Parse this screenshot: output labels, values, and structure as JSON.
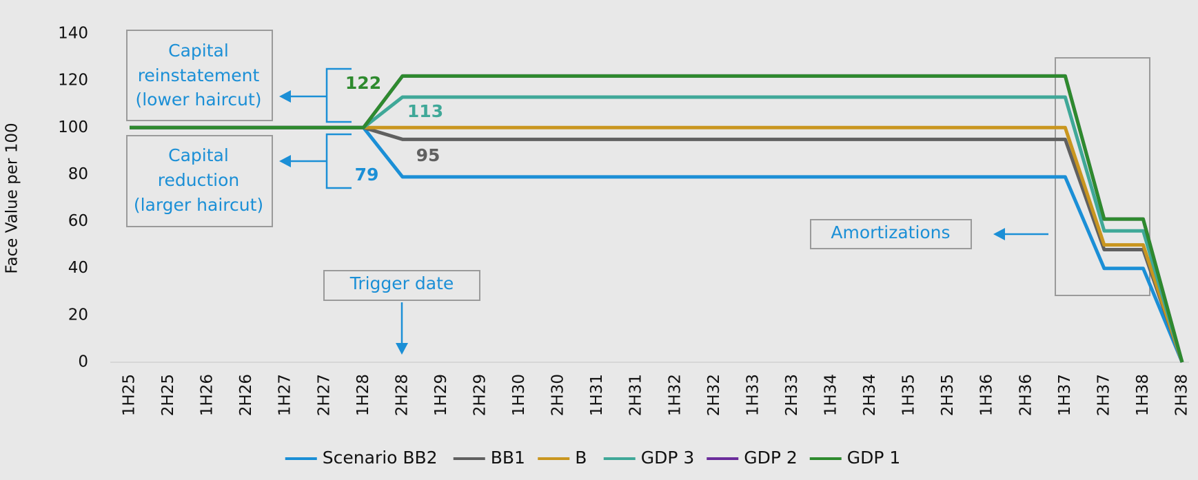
{
  "chart_data": {
    "type": "line",
    "y_label": "Face Value per 100",
    "categories": [
      "1H25",
      "2H25",
      "1H26",
      "2H26",
      "1H27",
      "2H27",
      "1H28",
      "2H28",
      "1H29",
      "2H29",
      "1H30",
      "2H30",
      "1H31",
      "2H31",
      "1H32",
      "2H32",
      "1H33",
      "2H33",
      "1H34",
      "2H34",
      "1H35",
      "2H35",
      "1H36",
      "2H36",
      "1H37",
      "2H37",
      "1H38",
      "2H38"
    ],
    "series": [
      {
        "name": "Scenario BB2",
        "color": "#1b8fd6",
        "values": [
          100,
          100,
          100,
          100,
          100,
          100,
          100,
          79,
          79,
          79,
          79,
          79,
          79,
          79,
          79,
          79,
          79,
          79,
          79,
          79,
          79,
          79,
          79,
          79,
          79,
          40,
          40,
          0
        ]
      },
      {
        "name": "BB1",
        "color": "#606060",
        "values": [
          100,
          100,
          100,
          100,
          100,
          100,
          100,
          95,
          95,
          95,
          95,
          95,
          95,
          95,
          95,
          95,
          95,
          95,
          95,
          95,
          95,
          95,
          95,
          95,
          95,
          48,
          48,
          0
        ]
      },
      {
        "name": "B",
        "color": "#c9961f",
        "values": [
          100,
          100,
          100,
          100,
          100,
          100,
          100,
          100,
          100,
          100,
          100,
          100,
          100,
          100,
          100,
          100,
          100,
          100,
          100,
          100,
          100,
          100,
          100,
          100,
          100,
          50,
          50,
          0
        ]
      },
      {
        "name": "GDP 3",
        "color": "#3fa898",
        "values": [
          100,
          100,
          100,
          100,
          100,
          100,
          100,
          113,
          113,
          113,
          113,
          113,
          113,
          113,
          113,
          113,
          113,
          113,
          113,
          113,
          113,
          113,
          113,
          113,
          113,
          56,
          56,
          0
        ]
      },
      {
        "name": "GDP 2",
        "color": "#6b2d9b",
        "values": [
          100,
          100,
          100,
          100,
          100,
          100,
          100,
          122,
          122,
          122,
          122,
          122,
          122,
          122,
          122,
          122,
          122,
          122,
          122,
          122,
          122,
          122,
          122,
          122,
          122,
          61,
          61,
          0
        ]
      },
      {
        "name": "GDP 1",
        "color": "#2e8a2e",
        "values": [
          100,
          100,
          100,
          100,
          100,
          100,
          100,
          122,
          122,
          122,
          122,
          122,
          122,
          122,
          122,
          122,
          122,
          122,
          122,
          122,
          122,
          122,
          122,
          122,
          122,
          61,
          61,
          0
        ]
      }
    ],
    "ylim": [
      0,
      140
    ],
    "yticks": [
      0,
      20,
      40,
      60,
      80,
      100,
      120,
      140
    ],
    "grid": false,
    "annotations": [
      {
        "lines": [
          "Capital",
          "reinstatement",
          "(lower haircut)"
        ]
      },
      {
        "lines": [
          "Capital",
          "reduction",
          "(larger haircut)"
        ]
      },
      {
        "lines": [
          "Trigger date"
        ]
      },
      {
        "lines": [
          "Amortizations"
        ]
      }
    ]
  }
}
